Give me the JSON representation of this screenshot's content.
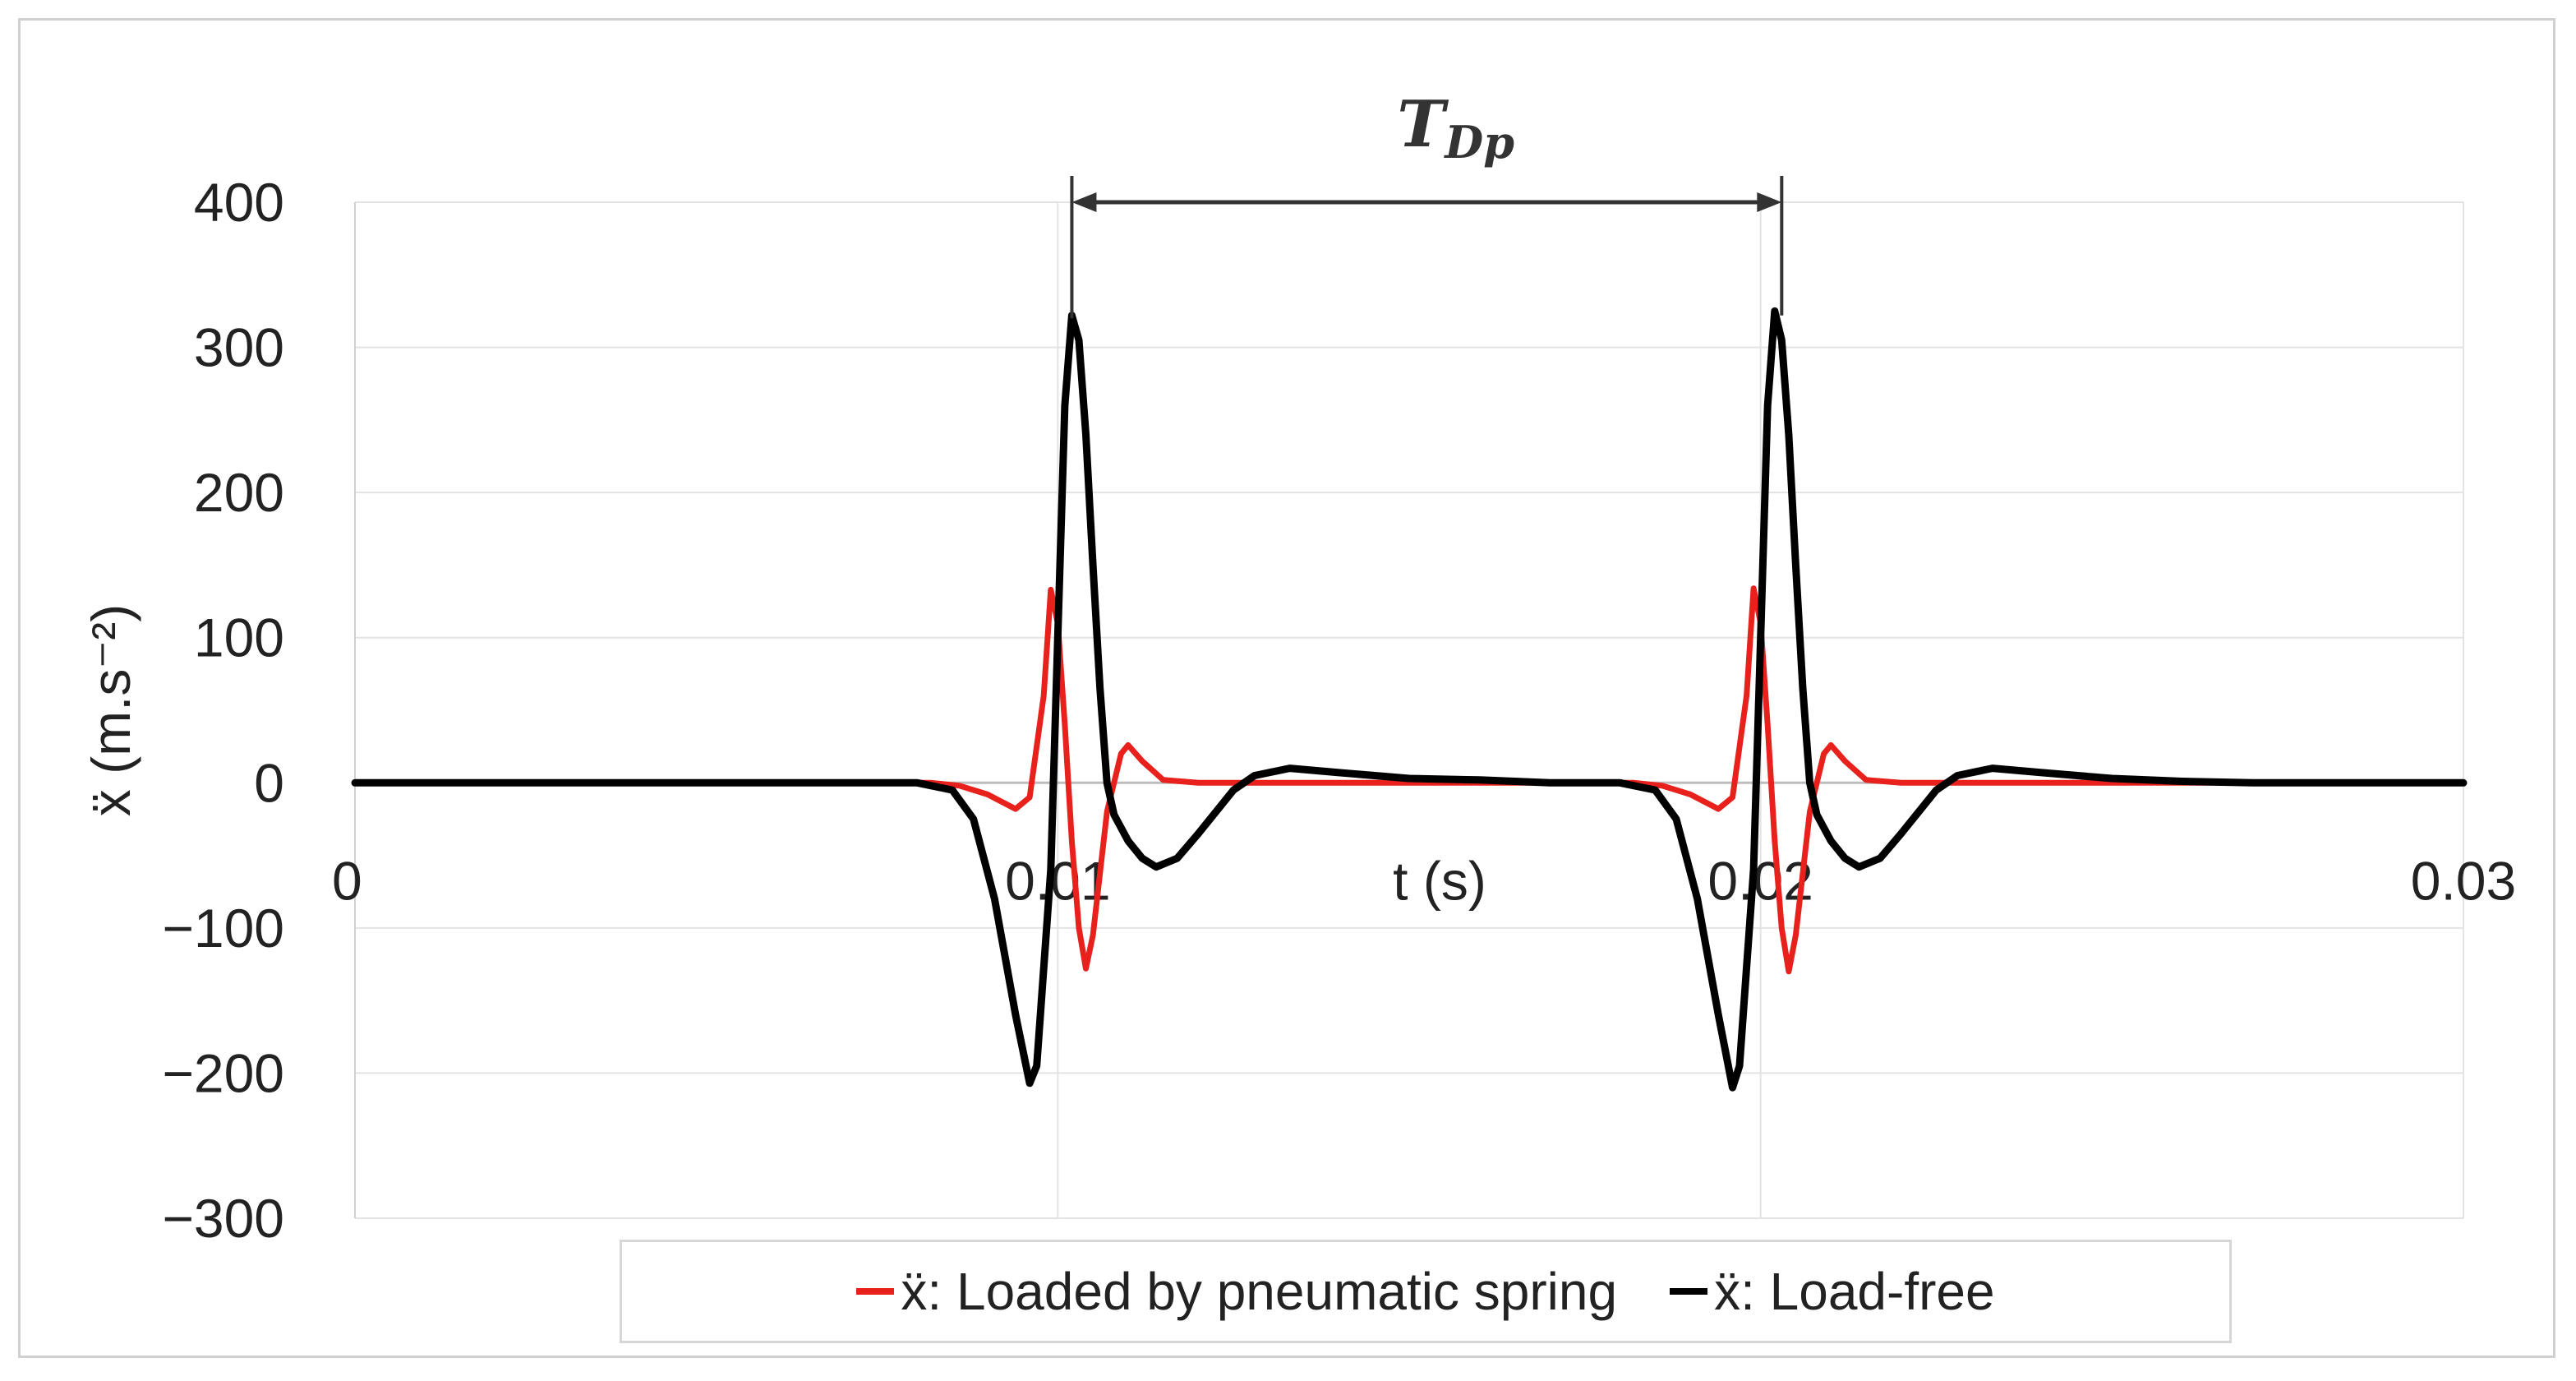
{
  "chart_data": {
    "type": "line",
    "title": "",
    "xlabel": "t (s)",
    "ylabel": "ẍ (m.s⁻²)",
    "xlim": [
      0,
      0.03
    ],
    "ylim": [
      -300,
      400
    ],
    "x_ticks": [
      "0",
      "0.01",
      "0.02",
      "0.03"
    ],
    "y_ticks": [
      "400",
      "300",
      "200",
      "100",
      "0",
      "−100",
      "−200",
      "−300"
    ],
    "grid": true,
    "legend_position": "bottom",
    "annotation": {
      "label": "T",
      "subscript": "Dp",
      "from_x": 0.0102,
      "to_x": 0.0203,
      "at_y": 400
    },
    "series": [
      {
        "name": "ẍ: Loaded by pneumatic spring",
        "color": "#e8211c",
        "points": [
          [
            0,
            0
          ],
          [
            0.0082,
            0
          ],
          [
            0.0086,
            -2
          ],
          [
            0.009,
            -8
          ],
          [
            0.0094,
            -18
          ],
          [
            0.0096,
            -10
          ],
          [
            0.0098,
            60
          ],
          [
            0.0099,
            133
          ],
          [
            0.01,
            110
          ],
          [
            0.0101,
            40
          ],
          [
            0.0102,
            -40
          ],
          [
            0.0103,
            -100
          ],
          [
            0.0104,
            -128
          ],
          [
            0.0105,
            -105
          ],
          [
            0.0107,
            -20
          ],
          [
            0.0109,
            20
          ],
          [
            0.011,
            26
          ],
          [
            0.0112,
            15
          ],
          [
            0.0115,
            2
          ],
          [
            0.012,
            0
          ],
          [
            0.0182,
            0
          ],
          [
            0.0186,
            -2
          ],
          [
            0.019,
            -8
          ],
          [
            0.0194,
            -18
          ],
          [
            0.0196,
            -10
          ],
          [
            0.0198,
            60
          ],
          [
            0.0199,
            134
          ],
          [
            0.02,
            110
          ],
          [
            0.0201,
            40
          ],
          [
            0.0202,
            -40
          ],
          [
            0.0203,
            -100
          ],
          [
            0.0204,
            -130
          ],
          [
            0.0205,
            -105
          ],
          [
            0.0207,
            -20
          ],
          [
            0.0209,
            20
          ],
          [
            0.021,
            26
          ],
          [
            0.0212,
            15
          ],
          [
            0.0215,
            2
          ],
          [
            0.022,
            0
          ],
          [
            0.03,
            0
          ]
        ]
      },
      {
        "name": "ẍ: Load-free",
        "color": "#000000",
        "points": [
          [
            0,
            0
          ],
          [
            0.008,
            0
          ],
          [
            0.0085,
            -5
          ],
          [
            0.0088,
            -25
          ],
          [
            0.0091,
            -80
          ],
          [
            0.0094,
            -160
          ],
          [
            0.0096,
            -207
          ],
          [
            0.0097,
            -195
          ],
          [
            0.0099,
            -60
          ],
          [
            0.01,
            100
          ],
          [
            0.0101,
            260
          ],
          [
            0.0102,
            322
          ],
          [
            0.0103,
            305
          ],
          [
            0.0104,
            240
          ],
          [
            0.0105,
            150
          ],
          [
            0.0106,
            65
          ],
          [
            0.0107,
            0
          ],
          [
            0.0108,
            -22
          ],
          [
            0.011,
            -40
          ],
          [
            0.0112,
            -52
          ],
          [
            0.0114,
            -58
          ],
          [
            0.0117,
            -52
          ],
          [
            0.012,
            -35
          ],
          [
            0.0125,
            -5
          ],
          [
            0.0128,
            5
          ],
          [
            0.0133,
            10
          ],
          [
            0.014,
            7
          ],
          [
            0.015,
            3
          ],
          [
            0.016,
            2
          ],
          [
            0.017,
            0
          ],
          [
            0.018,
            0
          ],
          [
            0.0185,
            -5
          ],
          [
            0.0188,
            -25
          ],
          [
            0.0191,
            -80
          ],
          [
            0.0194,
            -160
          ],
          [
            0.0196,
            -210
          ],
          [
            0.0197,
            -195
          ],
          [
            0.0199,
            -60
          ],
          [
            0.02,
            100
          ],
          [
            0.0201,
            260
          ],
          [
            0.0202,
            325
          ],
          [
            0.0203,
            305
          ],
          [
            0.0204,
            240
          ],
          [
            0.0205,
            150
          ],
          [
            0.0206,
            65
          ],
          [
            0.0207,
            0
          ],
          [
            0.0208,
            -22
          ],
          [
            0.021,
            -40
          ],
          [
            0.0212,
            -52
          ],
          [
            0.0214,
            -58
          ],
          [
            0.0217,
            -52
          ],
          [
            0.022,
            -35
          ],
          [
            0.0225,
            -5
          ],
          [
            0.0228,
            5
          ],
          [
            0.0233,
            10
          ],
          [
            0.024,
            7
          ],
          [
            0.025,
            3
          ],
          [
            0.026,
            1
          ],
          [
            0.027,
            0
          ],
          [
            0.03,
            0
          ]
        ]
      }
    ]
  }
}
